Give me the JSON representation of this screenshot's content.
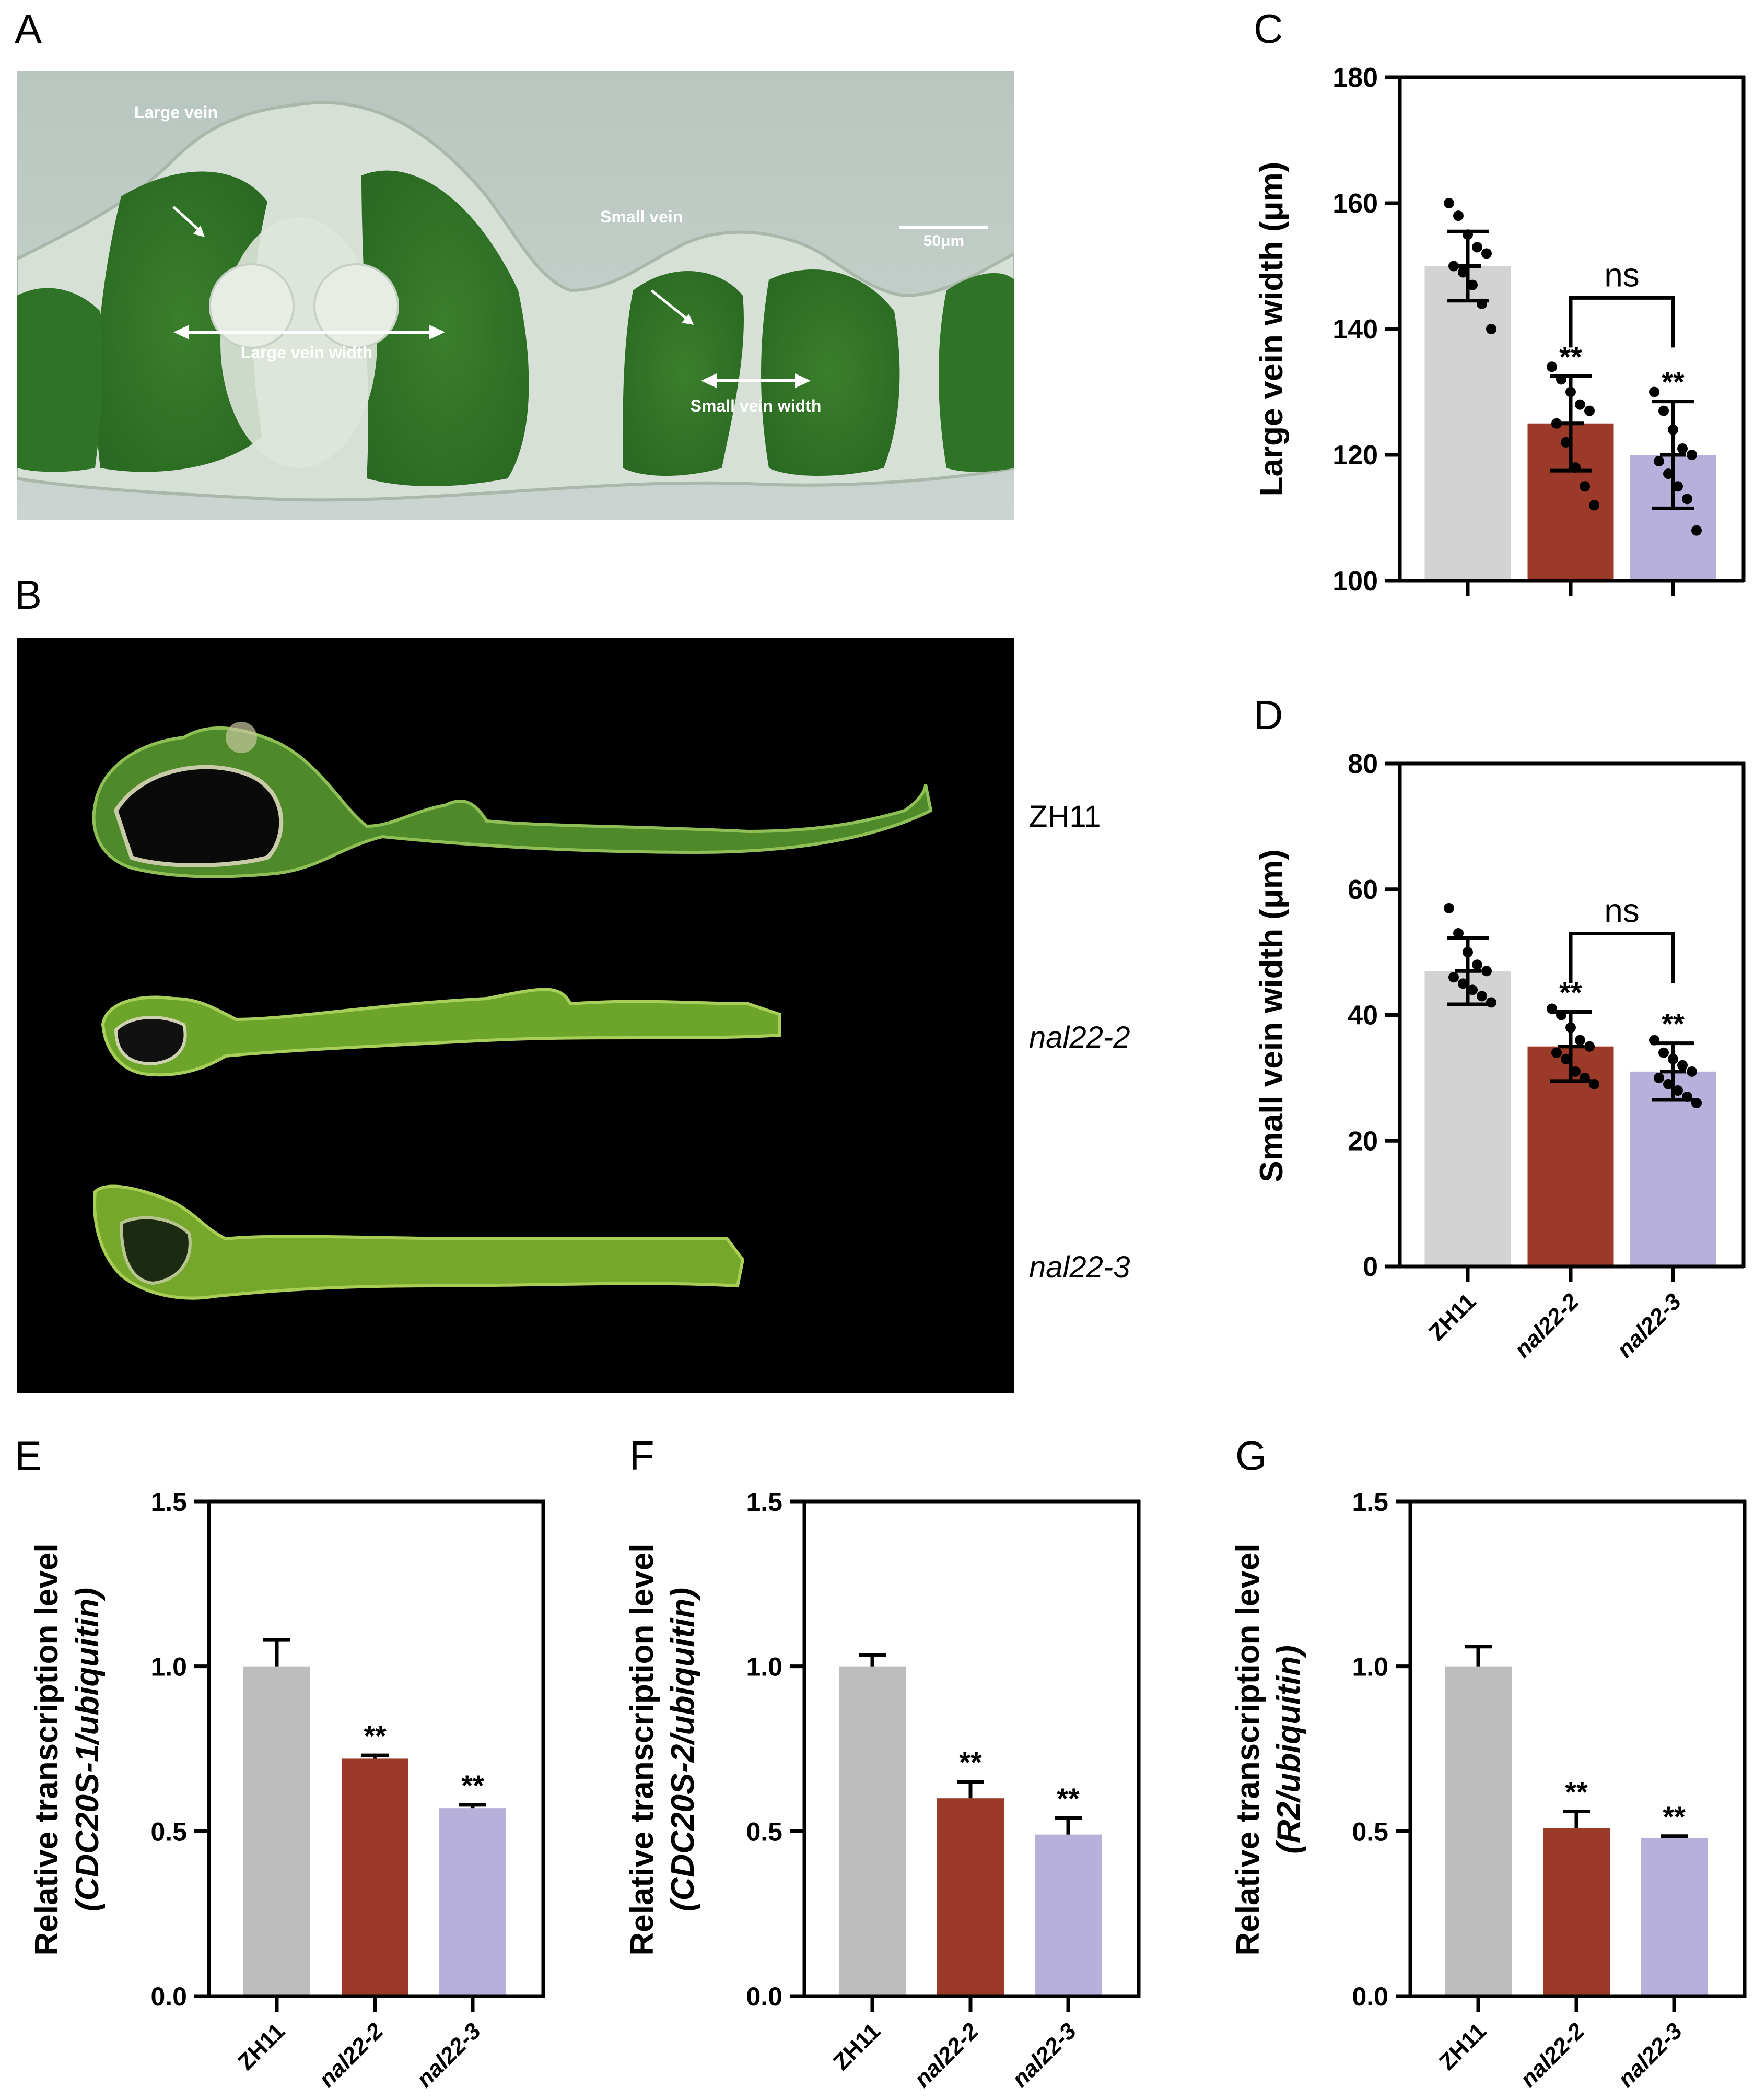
{
  "panels": {
    "A": {
      "letter": "A",
      "annotations": {
        "large_vein": "Large vein",
        "small_vein": "Small vein",
        "large_vein_width": "Large vein width",
        "small_vein_width": "Small vein width",
        "scale_bar": "50μm"
      }
    },
    "B": {
      "letter": "B",
      "genotypes": [
        "ZH11",
        "nal22-2",
        "nal22-3"
      ]
    },
    "C": {
      "letter": "C"
    },
    "D": {
      "letter": "D"
    },
    "E": {
      "letter": "E"
    },
    "F": {
      "letter": "F"
    },
    "G": {
      "letter": "G"
    }
  },
  "colors": {
    "ZH11": "#d3d3d3",
    "ZH11_qpcr": "#bdbdbd",
    "nal22-2": "#9b3a28",
    "nal22-3": "#b7b0db",
    "leaf_green": "#3f8a2e",
    "micro_bg": "#c9d3cc",
    "dark_bg": "#000000"
  },
  "chart_data": [
    {
      "panel": "C",
      "type": "bar",
      "categories": [
        "ZH11",
        "nal22-2",
        "nal22-3"
      ],
      "values": [
        150,
        125,
        120
      ],
      "error": [
        5.5,
        7.5,
        8.5
      ],
      "points": [
        [
          160,
          158,
          155,
          153,
          152,
          150,
          149,
          147,
          144,
          140
        ],
        [
          134,
          132,
          130,
          128,
          127,
          125,
          122,
          118,
          115,
          112
        ],
        [
          130,
          127,
          124,
          121,
          120,
          119,
          117,
          115,
          113,
          108
        ]
      ],
      "significance": [
        "",
        "**",
        "**"
      ],
      "comparison": {
        "between": [
          "nal22-2",
          "nal22-3"
        ],
        "label": "ns"
      },
      "ylabel": "Large vein width (μm)",
      "ylim": [
        100,
        180
      ],
      "yticks": [
        100,
        120,
        140,
        160,
        180
      ],
      "show_xticklabels": false
    },
    {
      "panel": "D",
      "type": "bar",
      "categories": [
        "ZH11",
        "nal22-2",
        "nal22-3"
      ],
      "values": [
        47,
        35,
        31
      ],
      "error": [
        5.3,
        5.5,
        4.5
      ],
      "points": [
        [
          57,
          53,
          50,
          48,
          47,
          46,
          45,
          44,
          43,
          42
        ],
        [
          41,
          40,
          38,
          36,
          35,
          34,
          33,
          31,
          30,
          29
        ],
        [
          36,
          34,
          33,
          32,
          31,
          30,
          29,
          28,
          27,
          26
        ]
      ],
      "significance": [
        "",
        "**",
        "**"
      ],
      "comparison": {
        "between": [
          "nal22-2",
          "nal22-3"
        ],
        "label": "ns"
      },
      "ylabel": "Small vein width (μm)",
      "ylim": [
        0,
        80
      ],
      "yticks": [
        0,
        20,
        40,
        60,
        80
      ],
      "show_xticklabels": true
    },
    {
      "panel": "E",
      "type": "bar",
      "categories": [
        "ZH11",
        "nal22-2",
        "nal22-3"
      ],
      "values": [
        1.0,
        0.72,
        0.57
      ],
      "error": [
        0.08,
        0.01,
        0.01
      ],
      "significance": [
        "",
        "**",
        "**"
      ],
      "ylabel_line1": "Relative  transcription level",
      "ylabel_line2": "(CDC20S-1/ubiquitin)",
      "ylim": [
        0.0,
        1.5
      ],
      "yticks": [
        0.0,
        0.5,
        1.0,
        1.5
      ],
      "yticklabels": [
        "0.0",
        "0.5",
        "1.0",
        "1.5"
      ],
      "show_xticklabels": true
    },
    {
      "panel": "F",
      "type": "bar",
      "categories": [
        "ZH11",
        "nal22-2",
        "nal22-3"
      ],
      "values": [
        1.0,
        0.6,
        0.49
      ],
      "error": [
        0.035,
        0.05,
        0.05
      ],
      "significance": [
        "",
        "**",
        "**"
      ],
      "ylabel_line1": "Relative  transcription level",
      "ylabel_line2": "(CDC20S-2/ubiquitin)",
      "ylim": [
        0.0,
        1.5
      ],
      "yticks": [
        0.0,
        0.5,
        1.0,
        1.5
      ],
      "yticklabels": [
        "0.0",
        "0.5",
        "1.0",
        "1.5"
      ],
      "show_xticklabels": true
    },
    {
      "panel": "G",
      "type": "bar",
      "categories": [
        "ZH11",
        "nal22-2",
        "nal22-3"
      ],
      "values": [
        1.0,
        0.51,
        0.48
      ],
      "error": [
        0.06,
        0.05,
        0.005
      ],
      "significance": [
        "",
        "**",
        "**"
      ],
      "ylabel_line1": "Relative  transcription level",
      "ylabel_line2": "(R2/ubiquitin)",
      "ylim": [
        0.0,
        1.5
      ],
      "yticks": [
        0.0,
        0.5,
        1.0,
        1.5
      ],
      "yticklabels": [
        "0.0",
        "0.5",
        "1.0",
        "1.5"
      ],
      "show_xticklabels": true
    }
  ]
}
